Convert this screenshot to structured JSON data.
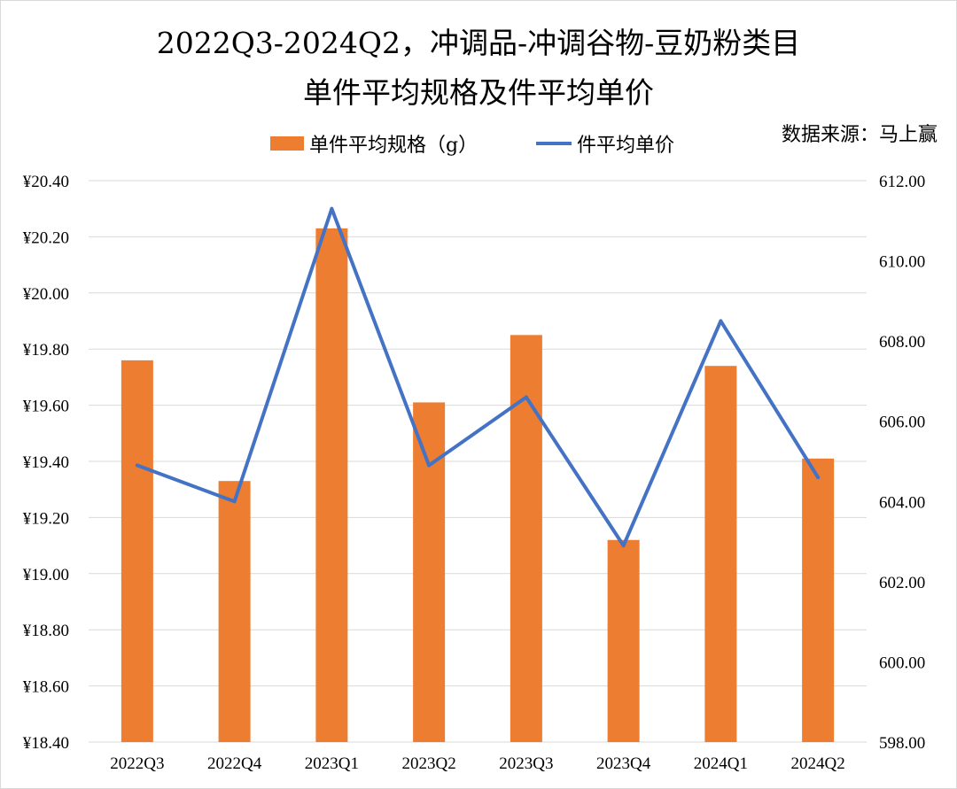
{
  "title": {
    "line1": "2022Q3-2024Q2，冲调品-冲调谷物-豆奶粉类目",
    "line2": "单件平均规格及件平均单价"
  },
  "source": "数据来源：马上赢",
  "legend": {
    "bar_label": "单件平均规格（g）",
    "line_label": "件平均单价"
  },
  "colors": {
    "bar": "#ED7D31",
    "line": "#4472C4",
    "grid": "#d9d9d9"
  },
  "chart_data": {
    "type": "bar",
    "categories": [
      "2022Q3",
      "2022Q4",
      "2023Q1",
      "2023Q2",
      "2023Q3",
      "2023Q4",
      "2024Q1",
      "2024Q2"
    ],
    "series": [
      {
        "name": "单件平均规格（g）",
        "type": "bar",
        "axis": "left",
        "values": [
          19.76,
          19.33,
          20.23,
          19.61,
          19.85,
          19.12,
          19.74,
          19.41
        ]
      },
      {
        "name": "件平均单价",
        "type": "line",
        "axis": "right",
        "values": [
          604.9,
          604.0,
          611.3,
          604.9,
          606.6,
          602.9,
          608.5,
          604.6
        ]
      }
    ],
    "y_left": {
      "lim": [
        18.4,
        20.4
      ],
      "ticks": [
        18.4,
        18.6,
        18.8,
        19.0,
        19.2,
        19.4,
        19.6,
        19.8,
        20.0,
        20.2,
        20.4
      ],
      "tick_labels": [
        "¥18.40",
        "¥18.60",
        "¥18.80",
        "¥19.00",
        "¥19.20",
        "¥19.40",
        "¥19.60",
        "¥19.80",
        "¥20.00",
        "¥20.20",
        "¥20.40"
      ]
    },
    "y_right": {
      "lim": [
        598,
        612
      ],
      "ticks": [
        598,
        600,
        602,
        604,
        606,
        608,
        610,
        612
      ],
      "tick_labels": [
        "598.00",
        "600.00",
        "602.00",
        "604.00",
        "606.00",
        "608.00",
        "610.00",
        "612.00"
      ]
    },
    "grid": true,
    "legend_position": "top"
  }
}
